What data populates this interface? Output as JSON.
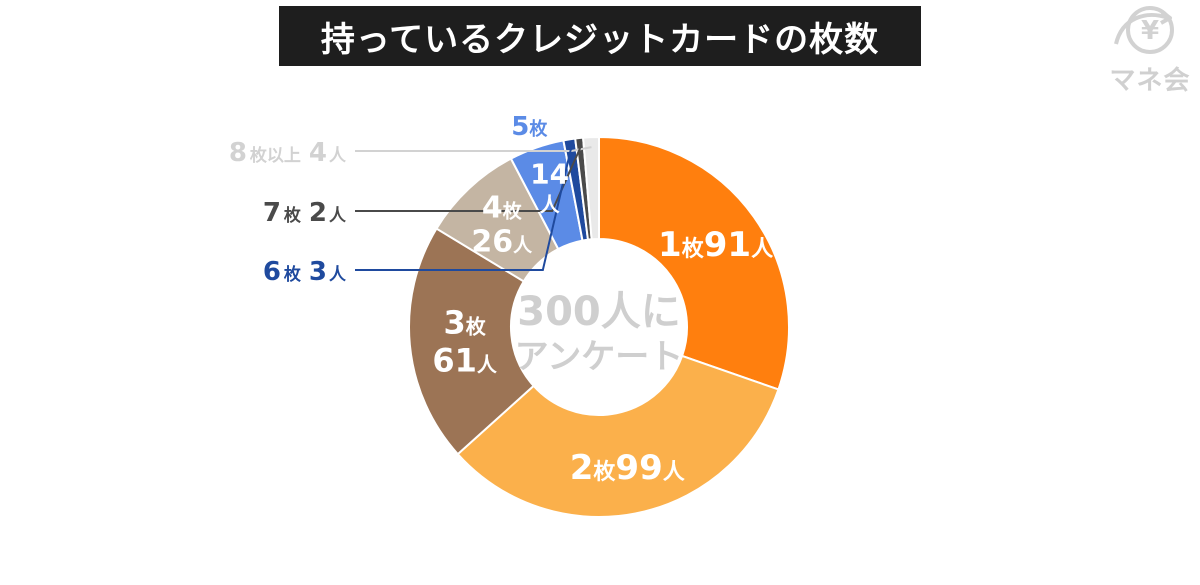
{
  "title": "持っているクレジットカードの枚数",
  "logo": {
    "symbol": "¥",
    "text": "マネ会",
    "icon": "piggy-bank-yen-icon"
  },
  "center": {
    "line1": "300人に",
    "line2": "アンケート"
  },
  "chart_data": {
    "type": "pie",
    "style": "donut",
    "title": "持っているクレジットカードの枚数",
    "total": 300,
    "unit": "人",
    "categories": [
      "1枚",
      "2枚",
      "3枚",
      "4枚",
      "5枚",
      "6枚",
      "7枚",
      "8枚以上"
    ],
    "values": [
      91,
      99,
      61,
      26,
      14,
      3,
      2,
      4
    ],
    "colors": [
      "#ff7f0e",
      "#fbb04b",
      "#9c7455",
      "#c4b5a3",
      "#5b8be6",
      "#1f4a9e",
      "#4a4a4a",
      "#e9e9e9"
    ],
    "slice_labels": [
      {
        "count": "1",
        "unit": "枚",
        "value": "91",
        "suffix": "人"
      },
      {
        "count": "2",
        "unit": "枚",
        "value": "99",
        "suffix": "人"
      },
      {
        "count": "3",
        "unit": "枚",
        "value": "61",
        "suffix": "人"
      },
      {
        "count": "4",
        "unit": "枚",
        "value": "26",
        "suffix": "人"
      },
      {
        "count": "5",
        "unit": "枚",
        "value": "14",
        "suffix": "人"
      }
    ],
    "callouts": [
      {
        "count": "8",
        "unit": "枚以上",
        "value": "4",
        "suffix": "人",
        "color": "#d2d2d2"
      },
      {
        "count": "7",
        "unit": "枚",
        "value": "2",
        "suffix": "人",
        "color": "#4a4a4a"
      },
      {
        "count": "6",
        "unit": "枚",
        "value": "3",
        "suffix": "人",
        "color": "#1f4a9e"
      }
    ]
  }
}
